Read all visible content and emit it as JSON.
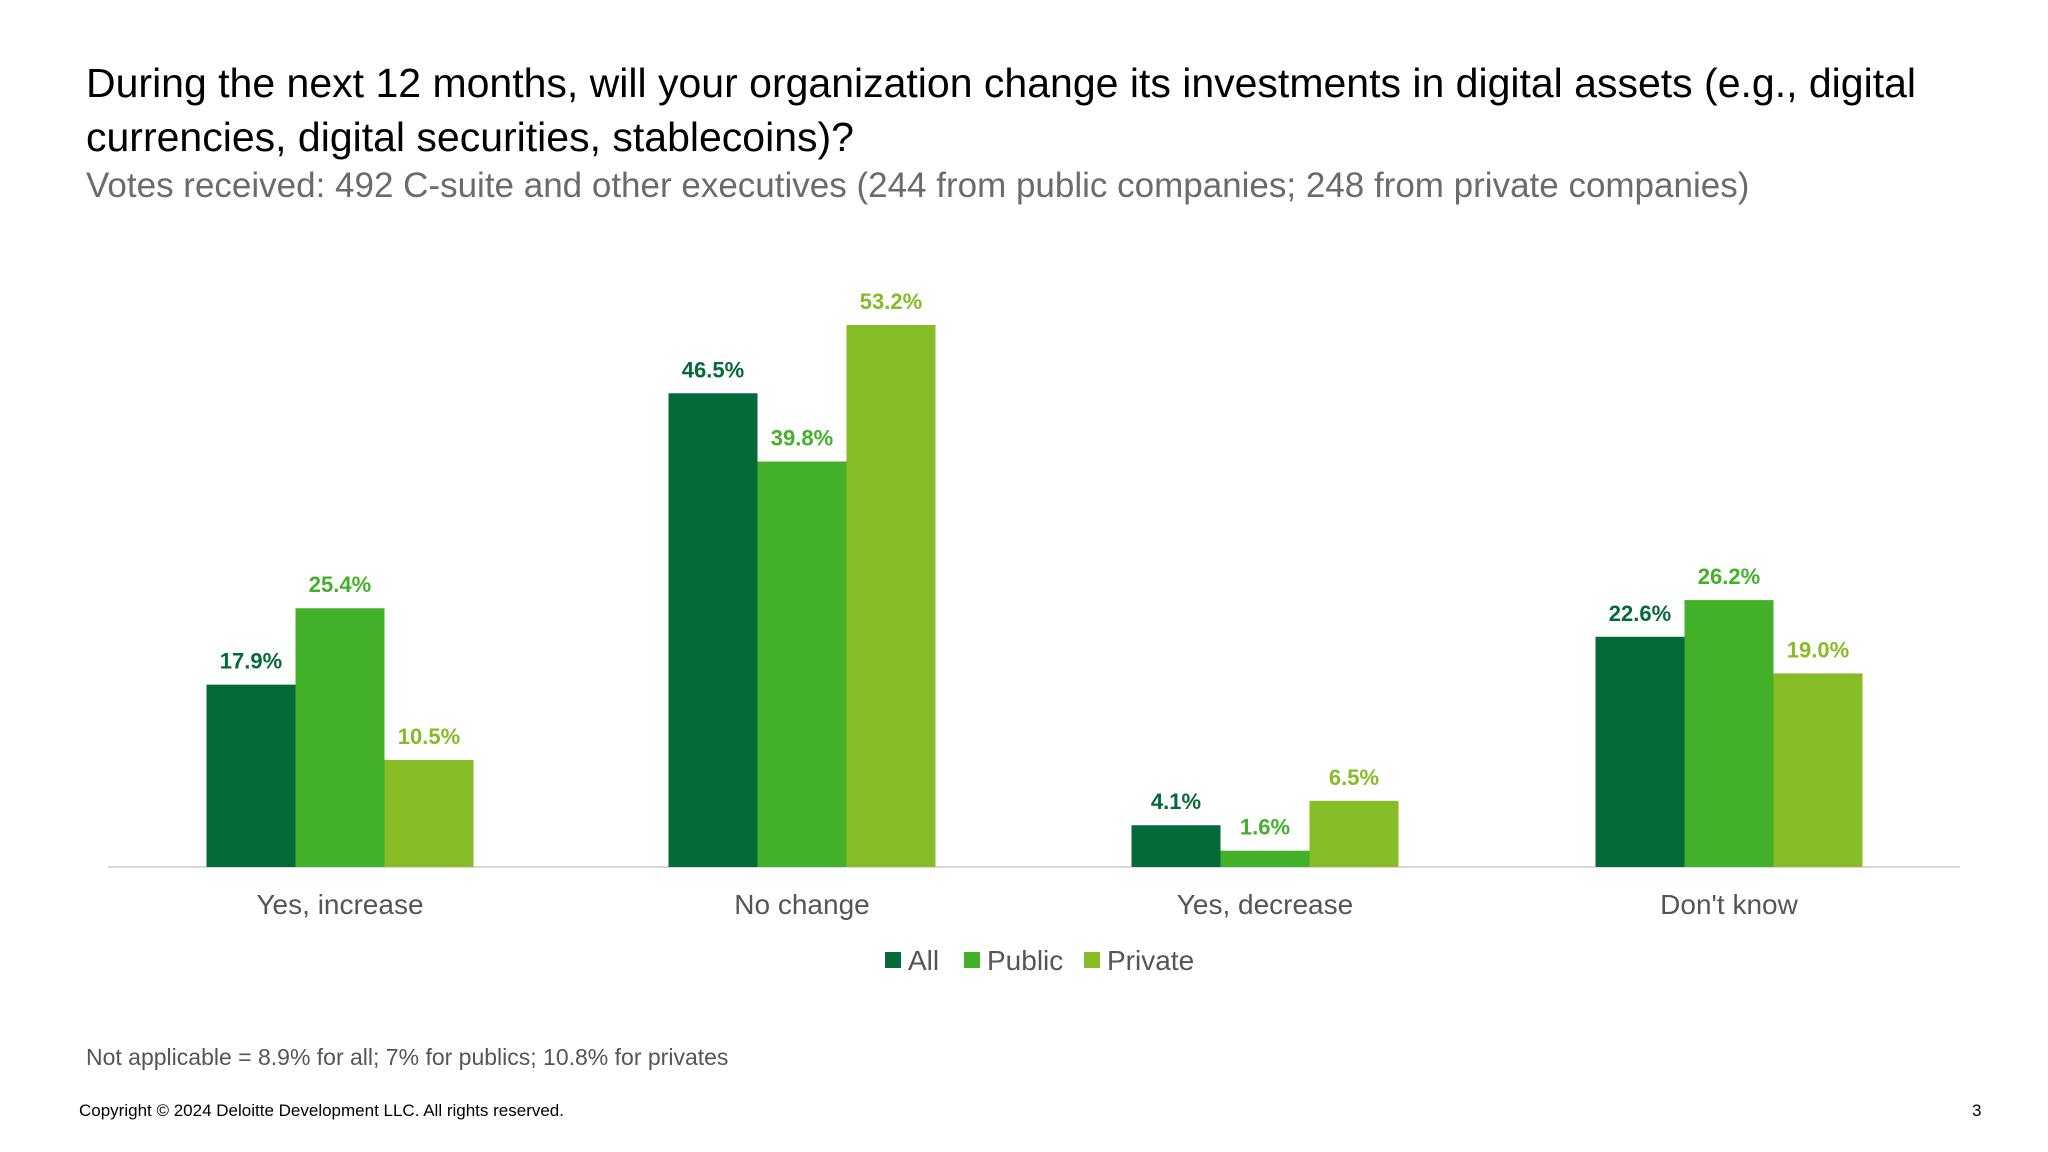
{
  "slide": {
    "title": "During the next 12 months, will your organization change its investments in digital assets (e.g., digital currencies, digital securities, stablecoins)?",
    "subtitle": "Votes received: 492 C-suite and other executives (244 from public companies; 248 from private companies)",
    "footnote": "Not applicable = 8.9% for all; 7% for publics; 10.8% for privates",
    "copyright": "Copyright © 2024 Deloitte Development LLC. All rights reserved.",
    "page_number": "3"
  },
  "chart_data": {
    "type": "bar",
    "categories": [
      "Yes, increase",
      "No change",
      "Yes, decrease",
      "Don't know"
    ],
    "series": [
      {
        "name": "All",
        "color": "#046A38",
        "values": [
          17.9,
          46.5,
          4.1,
          22.6
        ],
        "labels": [
          "17.9%",
          "46.5%",
          "4.1%",
          "22.6%"
        ]
      },
      {
        "name": "Public",
        "color": "#43B02A",
        "values": [
          25.4,
          39.8,
          1.6,
          26.2
        ],
        "labels": [
          "25.4%",
          "39.8%",
          "1.6%",
          "26.2%"
        ]
      },
      {
        "name": "Private",
        "color": "#86BC25",
        "values": [
          10.5,
          53.2,
          6.5,
          19.0
        ],
        "labels": [
          "10.5%",
          "53.2%",
          "6.5%",
          "19.0%"
        ]
      }
    ],
    "ylim": [
      0,
      55
    ],
    "grid": false,
    "legend": "bottom"
  }
}
